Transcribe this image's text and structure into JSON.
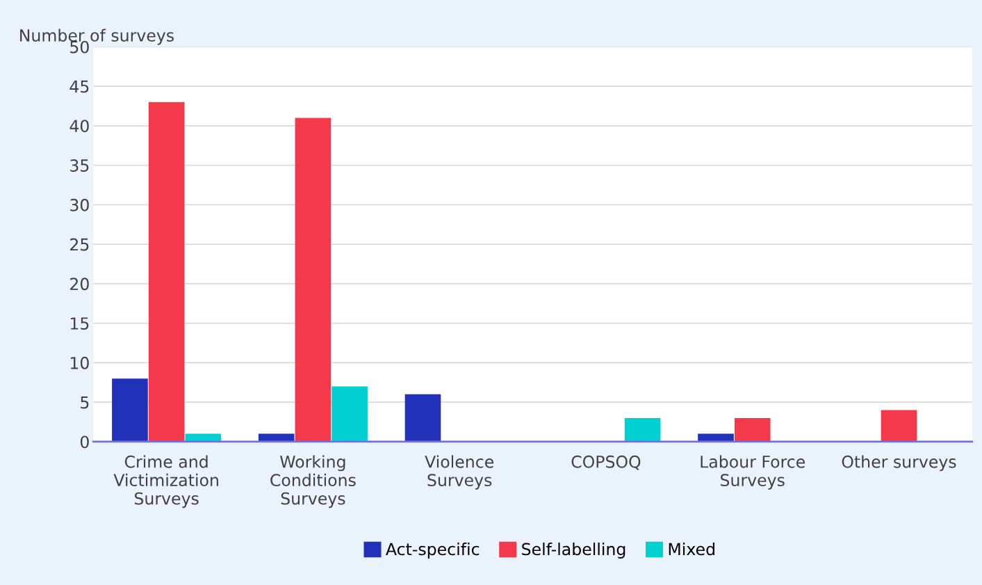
{
  "chart_data": {
    "type": "bar",
    "ylabel": "Number of surveys",
    "categories": [
      "Crime and\nVictimization\nSurveys",
      "Working\nConditions\nSurveys",
      "Violence\nSurveys",
      "COPSOQ",
      "Labour Force\nSurveys",
      "Other surveys"
    ],
    "series": [
      {
        "name": "Act-specific",
        "color": "#2030b8",
        "values": [
          8,
          1,
          6,
          0,
          1,
          0
        ]
      },
      {
        "name": "Self-labelling",
        "color": "#f43a4a",
        "values": [
          43,
          41,
          0,
          0,
          3,
          4
        ]
      },
      {
        "name": "Mixed",
        "color": "#00d0d0",
        "values": [
          1,
          7,
          0,
          3,
          0,
          0
        ]
      }
    ],
    "ylim": [
      0,
      50
    ],
    "yticks": [
      0,
      5,
      10,
      15,
      20,
      25,
      30,
      35,
      40,
      45,
      50
    ],
    "grid": "y",
    "legend": "bottom"
  }
}
